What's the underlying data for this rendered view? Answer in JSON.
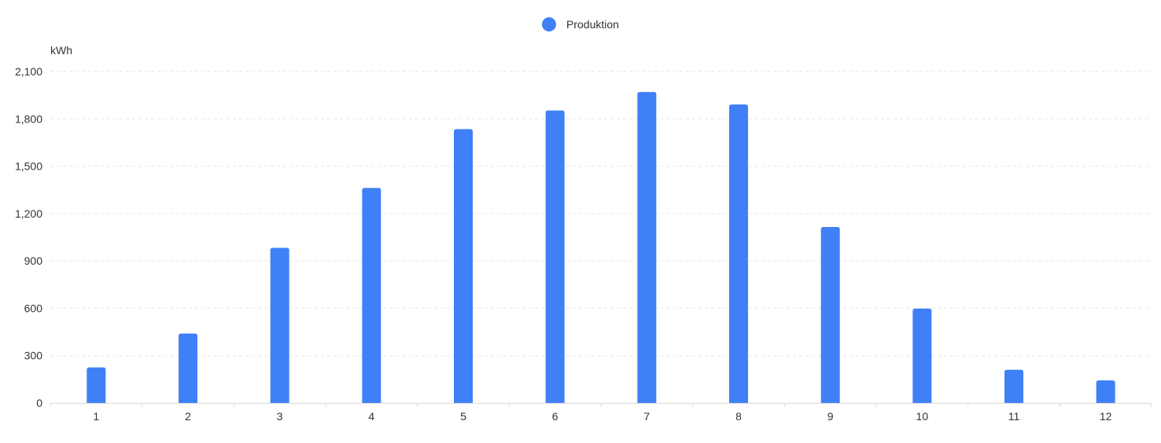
{
  "chart_data": {
    "type": "bar",
    "title": "",
    "xlabel": "",
    "ylabel": "kWh",
    "categories": [
      "1",
      "2",
      "3",
      "4",
      "5",
      "6",
      "7",
      "8",
      "9",
      "10",
      "11",
      "12"
    ],
    "series": [
      {
        "name": "Produktion",
        "values": [
          225,
          440,
          983,
          1362,
          1735,
          1853,
          1970,
          1891,
          1115,
          598,
          210,
          143
        ]
      }
    ],
    "ylim": [
      0,
      2100
    ],
    "yticks": [
      0,
      300,
      600,
      900,
      1200,
      1500,
      1800,
      2100
    ],
    "ytick_labels": [
      "0",
      "300",
      "600",
      "900",
      "1,200",
      "1,500",
      "1,800",
      "2,100"
    ],
    "grid": true,
    "legend_position": "top-center",
    "colors": {
      "bar": "#4080f7",
      "grid": "#e6e6e6",
      "axis": "#d9d9d9",
      "text": "#333333"
    }
  }
}
